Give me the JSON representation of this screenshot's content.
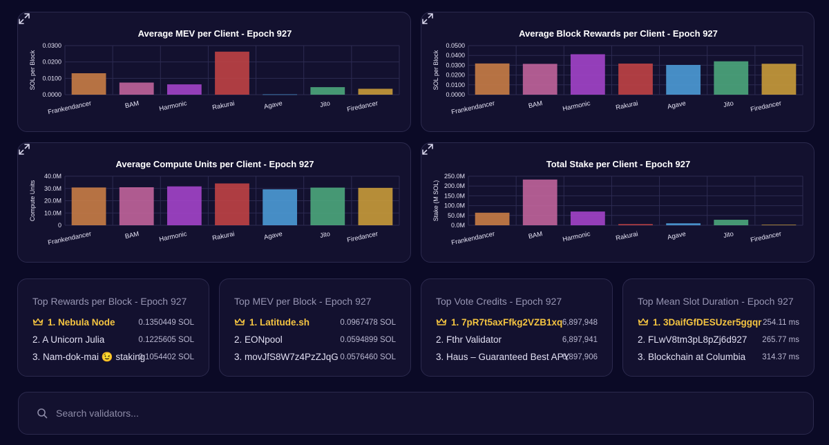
{
  "colors": {
    "Frankendancer": "#c97d46",
    "BAM": "#c1649b",
    "Harmonic": "#a344c9",
    "Rakurai": "#c04245",
    "Agave": "#4c9bd6",
    "Jito": "#4ca77c",
    "Firedancer": "#c99b3a",
    "highlight": "#f4c441"
  },
  "chart_data": [
    {
      "type": "bar",
      "title": "Average MEV per Client - Epoch 927",
      "ylabel": "SOL per Block",
      "xlabel": "",
      "categories": [
        "Frankendancer",
        "BAM",
        "Harmonic",
        "Rakurai",
        "Agave",
        "Jito",
        "Firedancer"
      ],
      "values": [
        0.0131,
        0.0074,
        0.0063,
        0.0263,
        0.0002,
        0.0046,
        0.0036
      ],
      "ylim": [
        0,
        0.03
      ],
      "yticks": [
        "0.0000",
        "0.0100",
        "0.0200",
        "0.0300"
      ],
      "grid": true
    },
    {
      "type": "bar",
      "title": "Average Block Rewards per Client - Epoch 927",
      "ylabel": "SOL per Block",
      "xlabel": "",
      "categories": [
        "Frankendancer",
        "BAM",
        "Harmonic",
        "Rakurai",
        "Agave",
        "Jito",
        "Firedancer"
      ],
      "values": [
        0.0318,
        0.0314,
        0.0412,
        0.0317,
        0.0303,
        0.034,
        0.0315
      ],
      "ylim": [
        0,
        0.05
      ],
      "yticks": [
        "0.0000",
        "0.0100",
        "0.0200",
        "0.0300",
        "0.0400",
        "0.0500"
      ],
      "grid": true
    },
    {
      "type": "bar",
      "title": "Average Compute Units per Client - Epoch 927",
      "ylabel": "Compute Units",
      "xlabel": "",
      "categories": [
        "Frankendancer",
        "BAM",
        "Harmonic",
        "Rakurai",
        "Agave",
        "Jito",
        "Firedancer"
      ],
      "values": [
        30.8,
        31.0,
        31.7,
        34.1,
        29.3,
        30.7,
        30.5
      ],
      "ylim": [
        0,
        40
      ],
      "yticks": [
        "0",
        "10.0M",
        "20.0M",
        "30.0M",
        "40.0M"
      ],
      "grid": true
    },
    {
      "type": "bar",
      "title": "Total Stake per Client - Epoch 927",
      "ylabel": "Stake (M SOL)",
      "xlabel": "",
      "categories": [
        "Frankendancer",
        "BAM",
        "Harmonic",
        "Rakurai",
        "Agave",
        "Jito",
        "Firedancer"
      ],
      "values": [
        64,
        233,
        70,
        6,
        10,
        28,
        3
      ],
      "ylim": [
        0,
        250
      ],
      "yticks": [
        "0.0M",
        "50.0M",
        "100.0M",
        "150.0M",
        "200.0M",
        "250.0M"
      ],
      "grid": true
    }
  ],
  "stats": [
    {
      "title": "Top Rewards per Block - Epoch 927",
      "rows": [
        {
          "name": "1. Nebula Node",
          "value": "0.1350449 SOL"
        },
        {
          "name": "2. A Unicorn Julia",
          "value": "0.1225605 SOL"
        },
        {
          "name": "3. Nam-dok-mai 😉 staking",
          "value": "0.1054402 SOL"
        }
      ]
    },
    {
      "title": "Top MEV per Block - Epoch 927",
      "rows": [
        {
          "name": "1. Latitude.sh",
          "value": "0.0967478 SOL"
        },
        {
          "name": "2. EONpool",
          "value": "0.0594899 SOL"
        },
        {
          "name": "3. movJfS8W7z4PzZJqG",
          "value": "0.0576460 SOL"
        }
      ]
    },
    {
      "title": "Top Vote Credits - Epoch 927",
      "rows": [
        {
          "name": "1. 7pR7t5axFfkg2VZB1xq",
          "value": "6,897,948"
        },
        {
          "name": "2. Fthr Validator",
          "value": "6,897,941"
        },
        {
          "name": "3. Haus – Guaranteed Best APY",
          "value": "6,897,906"
        }
      ]
    },
    {
      "title": "Top Mean Slot Duration - Epoch 927",
      "rows": [
        {
          "name": "1. 3DaifGfDESUzer5ggqr",
          "value": "254.11 ms"
        },
        {
          "name": "2. FLwV8tm3pL8pZj6d927",
          "value": "265.77 ms"
        },
        {
          "name": "3. Blockchain at Columbia",
          "value": "314.37 ms"
        }
      ]
    }
  ],
  "search": {
    "placeholder": "Search validators..."
  },
  "icons": {
    "expand": "expand-icon",
    "crown": "crown-icon",
    "search": "search-icon"
  }
}
